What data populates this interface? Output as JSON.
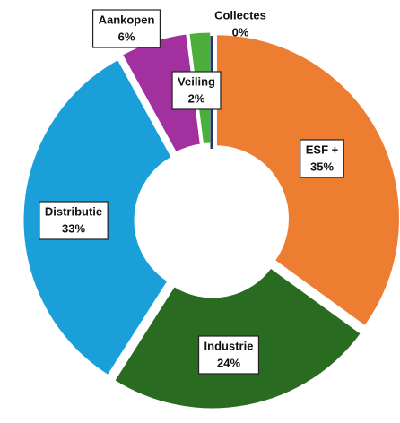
{
  "chart_data": {
    "type": "donut",
    "categories": [
      "ESF +",
      "Industrie",
      "Distributie",
      "Aankopen",
      "Veiling",
      "Collectes"
    ],
    "values": [
      35,
      24,
      33,
      6,
      2,
      0
    ],
    "value_labels": [
      "35%",
      "24%",
      "33%",
      "6%",
      "2%",
      "0%"
    ],
    "colors": [
      "#ed7d31",
      "#2a6b22",
      "#1a9fd9",
      "#a2309f",
      "#4cae3b",
      "#1f3864"
    ]
  }
}
